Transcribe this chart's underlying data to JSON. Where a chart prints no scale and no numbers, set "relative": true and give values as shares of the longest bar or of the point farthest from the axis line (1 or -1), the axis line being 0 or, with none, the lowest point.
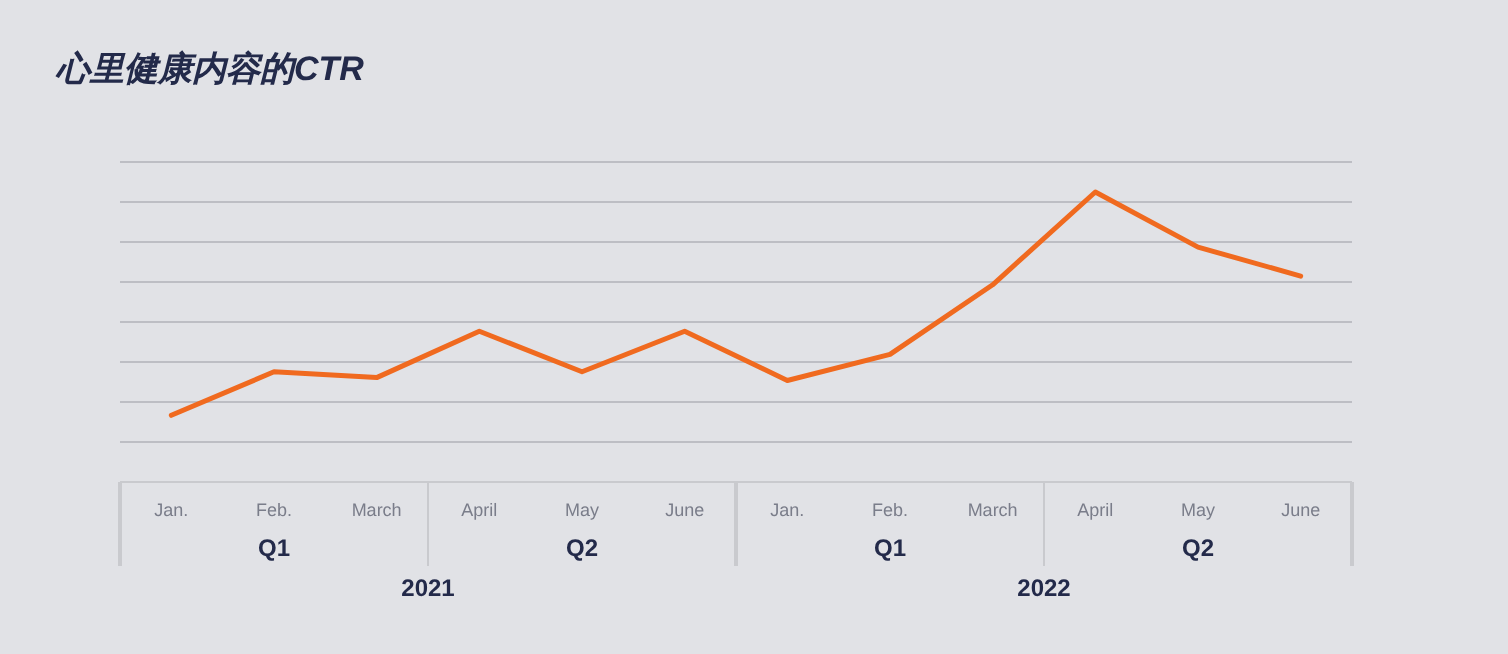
{
  "chart_data": {
    "type": "line",
    "title": "心里健康内容的CTR",
    "relative": true,
    "grid": "y",
    "categories": [
      "Jan.",
      "Feb.",
      "March",
      "April",
      "May",
      "June",
      "Jan.",
      "Feb.",
      "March",
      "April",
      "May",
      "June"
    ],
    "series": [
      {
        "color": "#f06a1f",
        "values": [
          0.23,
          0.38,
          0.36,
          0.52,
          0.38,
          0.52,
          0.35,
          0.44,
          0.68,
          1,
          0.81,
          0.71
        ]
      }
    ],
    "annotations": [
      "Q1",
      "Q2",
      "Q1",
      "Q2",
      "2021",
      "2022"
    ],
    "marker": "none",
    "line_style": "solid"
  }
}
